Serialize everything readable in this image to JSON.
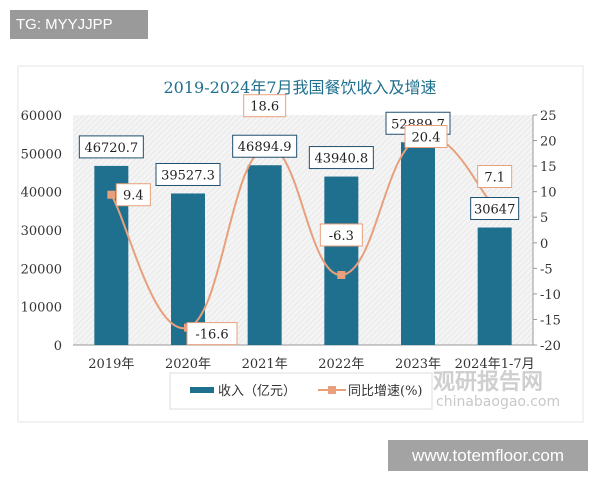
{
  "watermark_tag": "TG: MYYJJPP",
  "watermark_site": "www.totemfloor.com",
  "logo_text": "观研报告网",
  "logo_url": "chinabaogao.com",
  "chart_data": {
    "type": "bar+line",
    "title": "2019-2024年7月我国餐饮收入及增速",
    "categories": [
      "2019年",
      "2020年",
      "2021年",
      "2022年",
      "2023年",
      "2024年1-7月"
    ],
    "series": [
      {
        "name": "收入（亿元）",
        "type": "bar",
        "axis": "left",
        "color": "#1f6f8f",
        "values": [
          46720.7,
          39527.3,
          46894.9,
          43940.8,
          52889.7,
          30647
        ],
        "labels": [
          "46720.7",
          "39527.3",
          "46894.9",
          "43940.8",
          "52889.7",
          "30647"
        ]
      },
      {
        "name": "同比增速(%)",
        "type": "line",
        "axis": "right",
        "color": "#e8a07c",
        "smooth": true,
        "values": [
          9.4,
          -16.6,
          18.6,
          -6.3,
          20.4,
          7.1
        ],
        "labels": [
          "9.4",
          "-16.6",
          "18.6",
          "-6.3",
          "20.4",
          "7.1"
        ]
      }
    ],
    "y_left": {
      "ylim": [
        0,
        60000
      ],
      "ticks": [
        "0",
        "10000",
        "20000",
        "30000",
        "40000",
        "50000",
        "60000"
      ]
    },
    "y_right": {
      "ylim": [
        -20,
        25
      ],
      "ticks": [
        "-20",
        "-15",
        "-10",
        "-5",
        "0",
        "5",
        "10",
        "15",
        "20",
        "25"
      ]
    },
    "legend": "bottom",
    "grid": false
  }
}
